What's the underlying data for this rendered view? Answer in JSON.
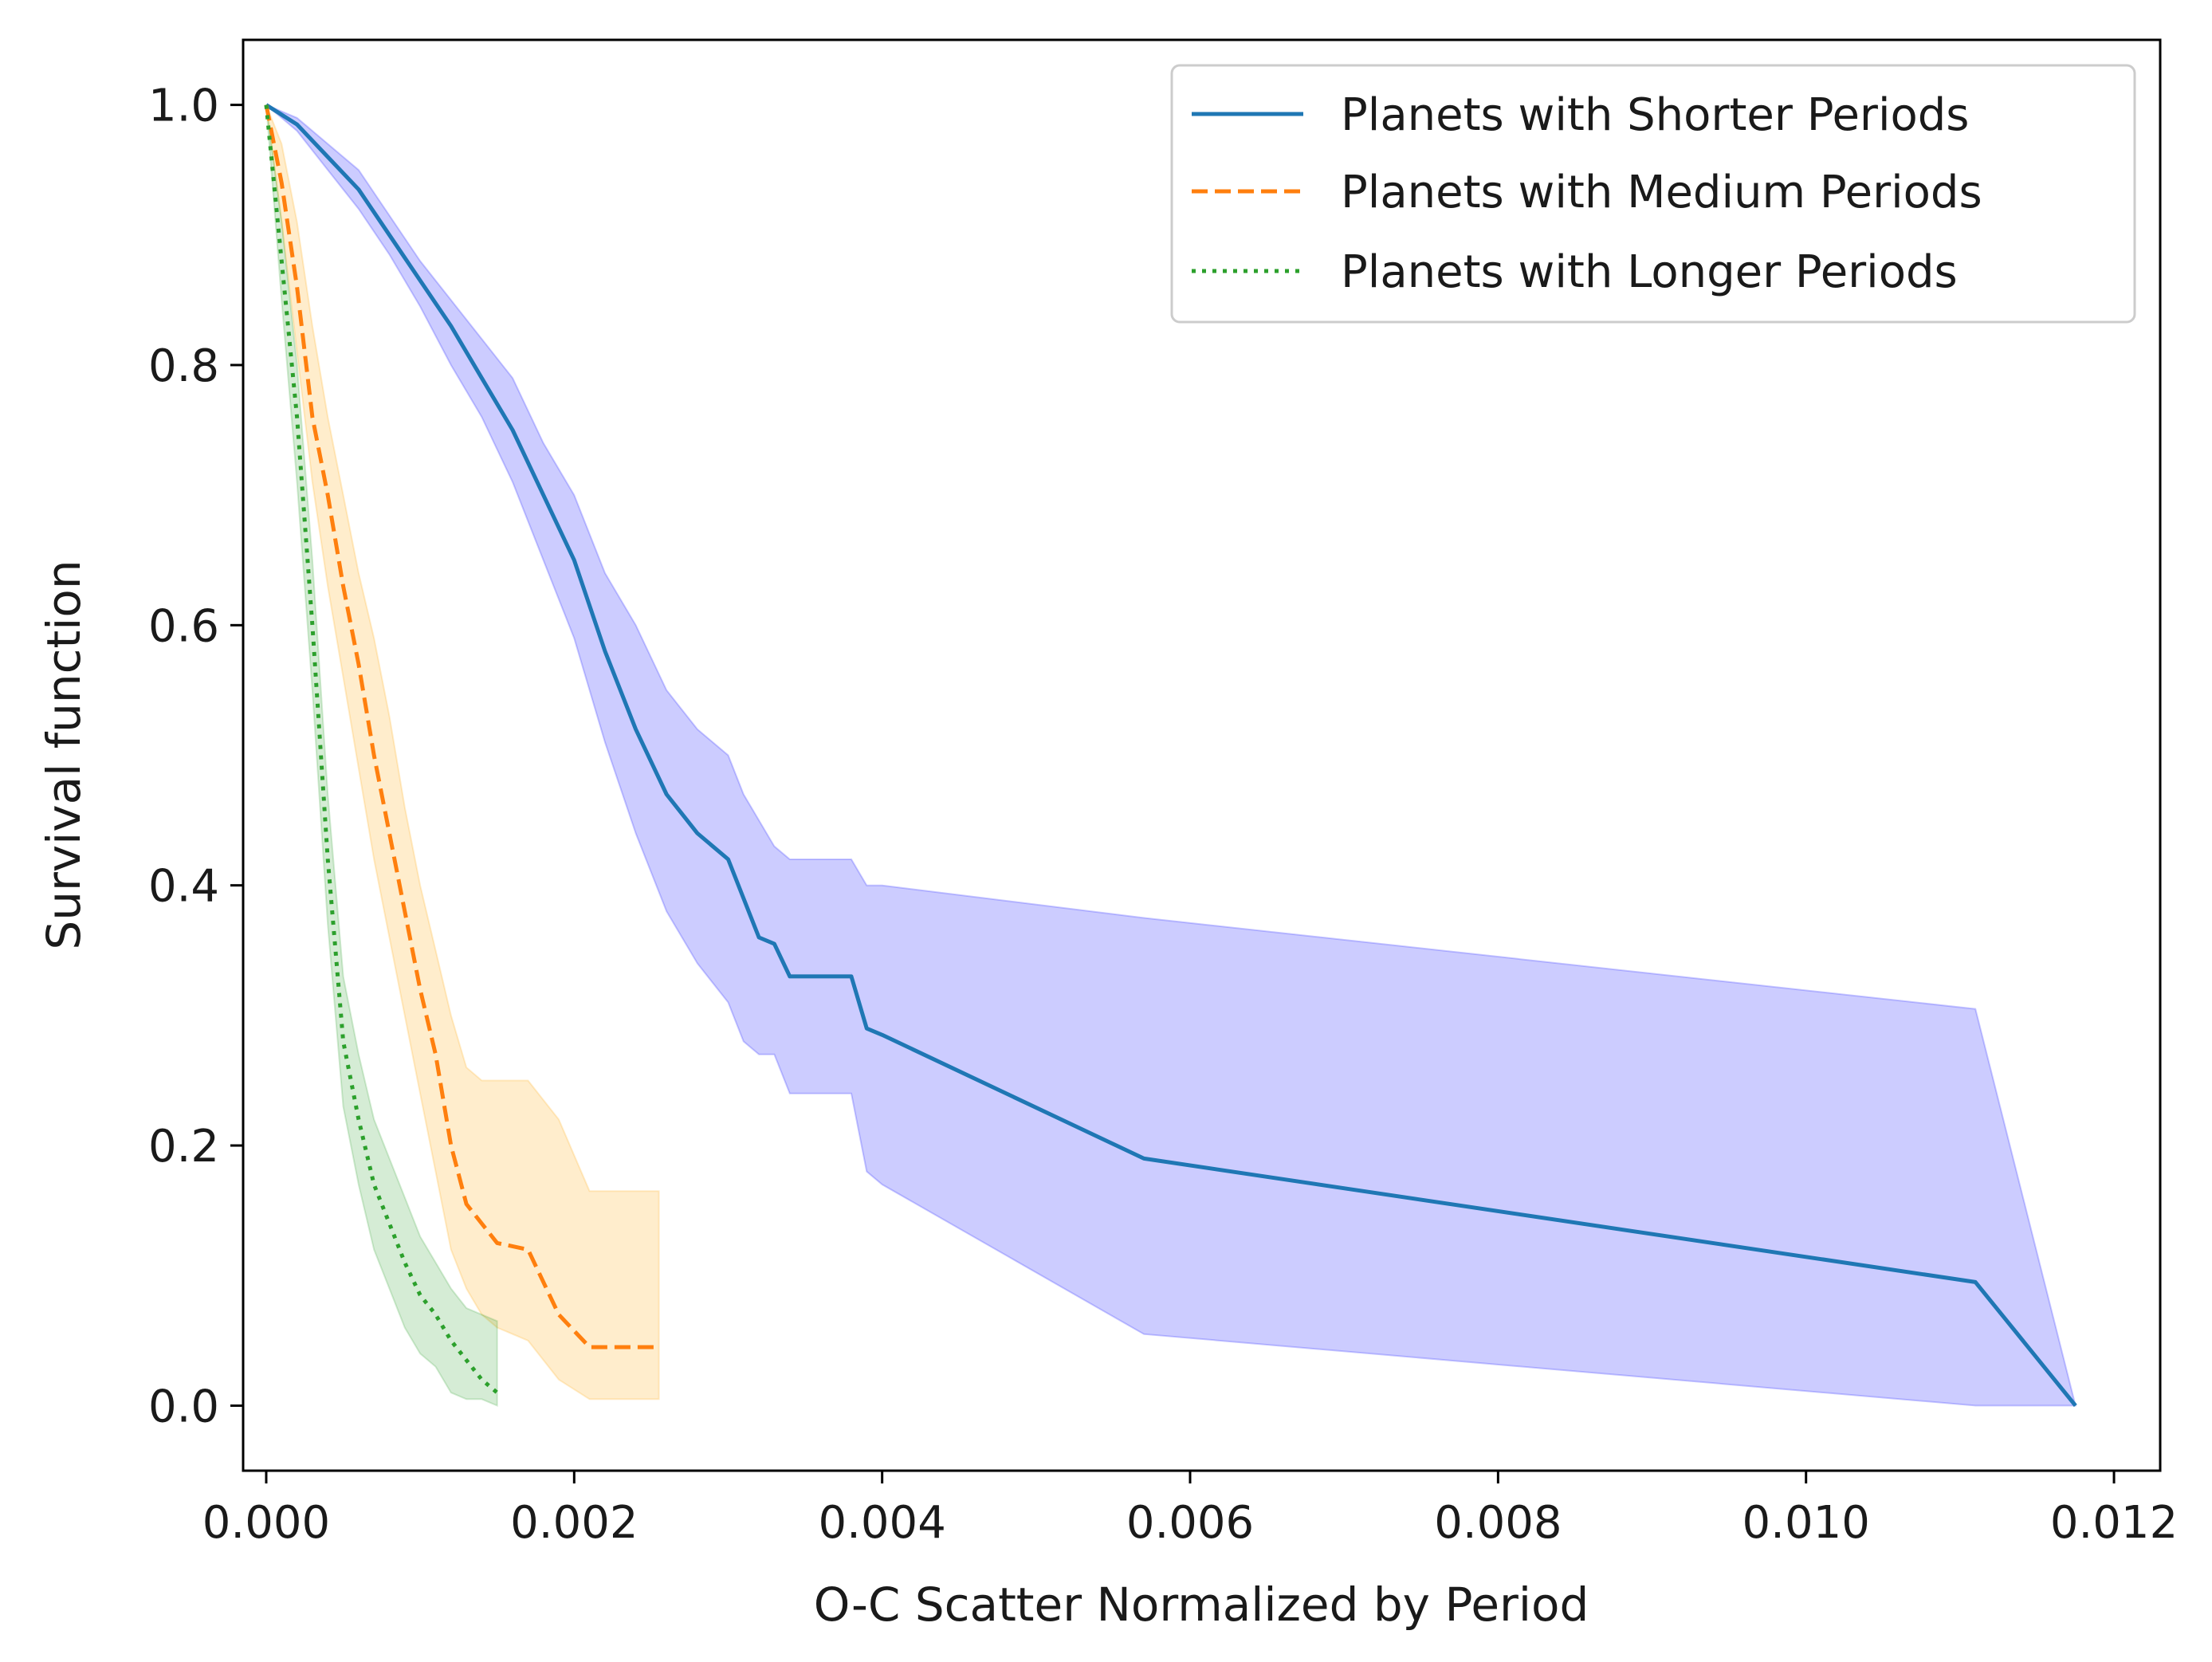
{
  "chart_data": {
    "type": "line",
    "title": "",
    "xlabel": "O-C Scatter Normalized by Period",
    "ylabel": "Survival function",
    "xlim": [
      -0.00015,
      0.0123
    ],
    "ylim": [
      -0.05,
      1.05
    ],
    "xticks": [
      0.0,
      0.002,
      0.004,
      0.006,
      0.008,
      0.01,
      0.012
    ],
    "xtick_labels": [
      "0.000",
      "0.002",
      "0.004",
      "0.006",
      "0.008",
      "0.010",
      "0.012"
    ],
    "yticks": [
      0.0,
      0.2,
      0.4,
      0.6,
      0.8,
      1.0
    ],
    "ytick_labels": [
      "0.0",
      "0.2",
      "0.4",
      "0.6",
      "0.8",
      "1.0"
    ],
    "grid": false,
    "legend_position": "top-right",
    "series": [
      {
        "name": "Planets with Shorter Periods",
        "color": "#1f77b4",
        "line_style": "solid",
        "band_color": "#0000ff",
        "x": [
          0.0,
          0.0002,
          0.0004,
          0.0006,
          0.0008,
          0.001,
          0.0012,
          0.0014,
          0.0016,
          0.0018,
          0.002,
          0.0022,
          0.0024,
          0.0026,
          0.0028,
          0.003,
          0.0031,
          0.0032,
          0.0033,
          0.0034,
          0.0038,
          0.0039,
          0.004,
          0.0057,
          0.0111,
          0.01175
        ],
        "y": [
          1.0,
          0.985,
          0.96,
          0.935,
          0.9,
          0.865,
          0.83,
          0.79,
          0.75,
          0.7,
          0.65,
          0.58,
          0.52,
          0.47,
          0.44,
          0.42,
          0.39,
          0.36,
          0.355,
          0.33,
          0.33,
          0.29,
          0.285,
          0.19,
          0.095,
          0.0
        ],
        "lower": [
          1.0,
          0.98,
          0.95,
          0.92,
          0.885,
          0.845,
          0.8,
          0.76,
          0.71,
          0.65,
          0.59,
          0.51,
          0.44,
          0.38,
          0.34,
          0.31,
          0.28,
          0.27,
          0.27,
          0.24,
          0.24,
          0.18,
          0.17,
          0.055,
          0.0,
          0.0
        ],
        "upper": [
          1.0,
          0.99,
          0.97,
          0.95,
          0.915,
          0.88,
          0.85,
          0.82,
          0.79,
          0.74,
          0.7,
          0.64,
          0.6,
          0.55,
          0.52,
          0.5,
          0.47,
          0.45,
          0.43,
          0.42,
          0.42,
          0.4,
          0.4,
          0.375,
          0.305,
          0.0
        ]
      },
      {
        "name": "Planets with Medium Periods",
        "color": "#ff7f0e",
        "line_style": "dashed",
        "band_color": "#ffa500",
        "x": [
          0.0,
          0.0001,
          0.0002,
          0.0003,
          0.0004,
          0.0005,
          0.0006,
          0.0007,
          0.0008,
          0.0009,
          0.001,
          0.0011,
          0.0012,
          0.0013,
          0.0014,
          0.0015,
          0.0017,
          0.0019,
          0.0021,
          0.00255
        ],
        "y": [
          1.0,
          0.94,
          0.86,
          0.76,
          0.7,
          0.63,
          0.57,
          0.5,
          0.44,
          0.38,
          0.32,
          0.27,
          0.2,
          0.155,
          0.14,
          0.125,
          0.12,
          0.07,
          0.045,
          0.045
        ],
        "lower": [
          1.0,
          0.91,
          0.81,
          0.71,
          0.63,
          0.56,
          0.49,
          0.42,
          0.36,
          0.3,
          0.24,
          0.18,
          0.12,
          0.09,
          0.07,
          0.06,
          0.05,
          0.02,
          0.005,
          0.005
        ],
        "upper": [
          1.0,
          0.97,
          0.91,
          0.83,
          0.76,
          0.7,
          0.64,
          0.59,
          0.53,
          0.46,
          0.4,
          0.35,
          0.3,
          0.26,
          0.25,
          0.25,
          0.25,
          0.22,
          0.165,
          0.165
        ]
      },
      {
        "name": "Planets with Longer Periods",
        "color": "#2ca02c",
        "line_style": "dotted",
        "band_color": "#2ca02c",
        "x": [
          0.0,
          0.0001,
          0.0002,
          0.0003,
          0.0004,
          0.0005,
          0.0006,
          0.0007,
          0.0008,
          0.0009,
          0.001,
          0.0011,
          0.0012,
          0.0013,
          0.0014,
          0.0015
        ],
        "y": [
          1.0,
          0.88,
          0.76,
          0.6,
          0.42,
          0.28,
          0.22,
          0.17,
          0.14,
          0.11,
          0.085,
          0.07,
          0.05,
          0.035,
          0.02,
          0.01
        ],
        "lower": [
          1.0,
          0.85,
          0.71,
          0.55,
          0.37,
          0.23,
          0.17,
          0.12,
          0.09,
          0.06,
          0.04,
          0.03,
          0.01,
          0.005,
          0.005,
          0.0
        ],
        "upper": [
          1.0,
          0.91,
          0.8,
          0.65,
          0.47,
          0.33,
          0.27,
          0.22,
          0.19,
          0.16,
          0.13,
          0.11,
          0.09,
          0.075,
          0.07,
          0.065
        ]
      }
    ]
  }
}
